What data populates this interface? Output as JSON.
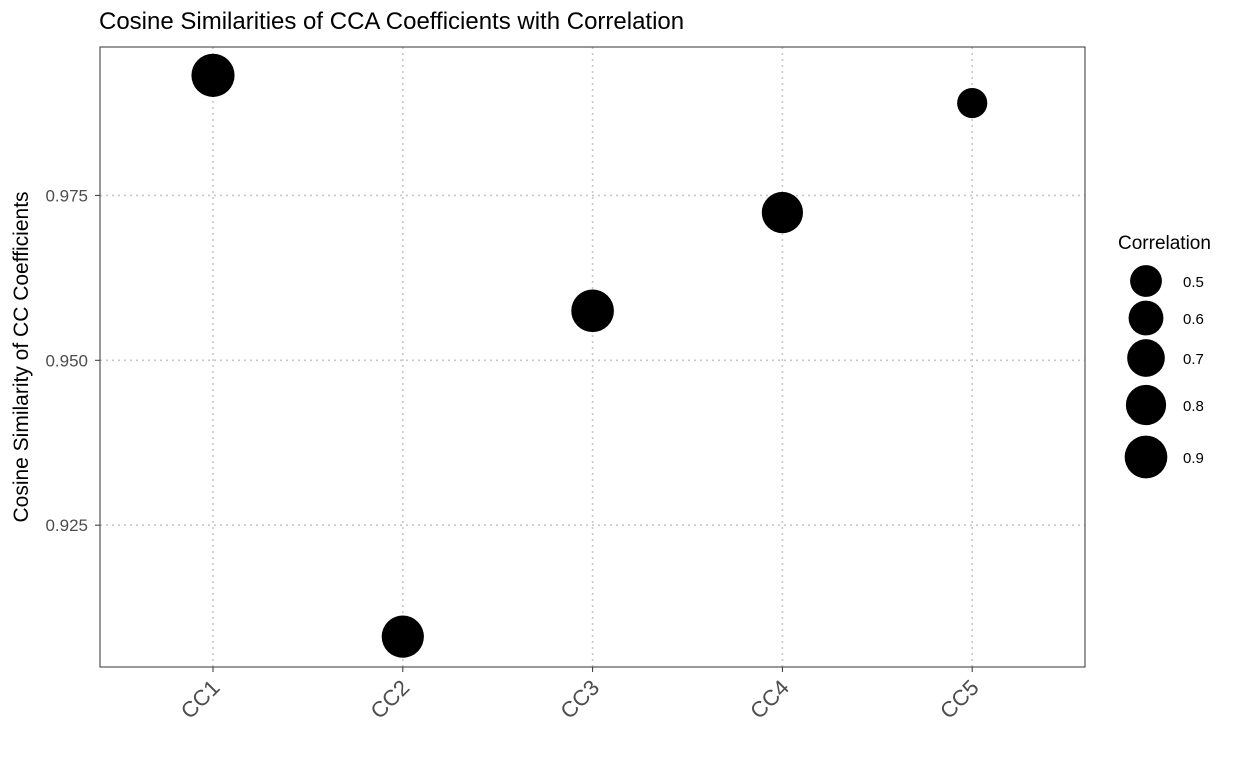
{
  "chart_data": {
    "type": "scatter",
    "title": "Cosine Similarities of CCA Coefficients with Correlation",
    "xlabel": "",
    "ylabel": "Cosine Similarity of CC Coefficients",
    "categories": [
      "CC1",
      "CC2",
      "CC3",
      "CC4",
      "CC5"
    ],
    "ylim": [
      0.9035,
      0.9975
    ],
    "yticks": [
      0.925,
      0.95,
      0.975
    ],
    "ytick_labels": [
      "0.925",
      "0.950",
      "0.975"
    ],
    "grid": true,
    "grid_style": "dotted",
    "points": [
      {
        "x": "CC1",
        "y": 0.9932,
        "size": 0.92
      },
      {
        "x": "CC2",
        "y": 0.9081,
        "size": 0.88
      },
      {
        "x": "CC3",
        "y": 0.9575,
        "size": 0.9
      },
      {
        "x": "CC4",
        "y": 0.9724,
        "size": 0.84
      },
      {
        "x": "CC5",
        "y": 0.989,
        "size": 0.45
      }
    ],
    "point_color": "#000000",
    "legend": {
      "title": "Correlation",
      "placement": "right",
      "entries": [
        {
          "label": "0.5",
          "value": 0.5
        },
        {
          "label": "0.6",
          "value": 0.6
        },
        {
          "label": "0.7",
          "value": 0.7
        },
        {
          "label": "0.8",
          "value": 0.8
        },
        {
          "label": "0.9",
          "value": 0.9
        }
      ]
    }
  }
}
